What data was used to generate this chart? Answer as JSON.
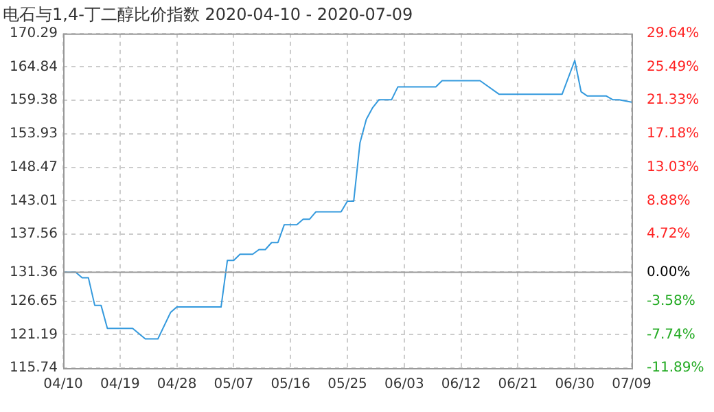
{
  "chart_data": {
    "type": "line",
    "title": "电石与1,4-丁二醇比价指数 2020-04-10 - 2020-07-09",
    "x": [
      "2020-04-10",
      "2020-04-12",
      "2020-04-13",
      "2020-04-14",
      "2020-04-15",
      "2020-04-16",
      "2020-04-17",
      "2020-04-21",
      "2020-04-23",
      "2020-04-25",
      "2020-04-27",
      "2020-04-28",
      "2020-05-05",
      "2020-05-06",
      "2020-05-07",
      "2020-05-08",
      "2020-05-10",
      "2020-05-11",
      "2020-05-12",
      "2020-05-13",
      "2020-05-14",
      "2020-05-15",
      "2020-05-17",
      "2020-05-18",
      "2020-05-19",
      "2020-05-20",
      "2020-05-24",
      "2020-05-25",
      "2020-05-26",
      "2020-05-27",
      "2020-05-28",
      "2020-05-29",
      "2020-05-30",
      "2020-06-01",
      "2020-06-02",
      "2020-06-08",
      "2020-06-09",
      "2020-06-15",
      "2020-06-18",
      "2020-06-28",
      "2020-06-30",
      "2020-07-01",
      "2020-07-02",
      "2020-07-05",
      "2020-07-06",
      "2020-07-07",
      "2020-07-09"
    ],
    "series": [
      {
        "color": "#3399dd",
        "values": [
          131.36,
          131.36,
          130.45,
          130.45,
          125.97,
          125.97,
          122.2,
          122.2,
          120.5,
          120.5,
          124.8,
          125.7,
          125.7,
          133.3,
          133.3,
          134.3,
          134.3,
          135.05,
          135.05,
          136.2,
          136.2,
          139.1,
          139.1,
          140.0,
          140.0,
          141.2,
          141.2,
          142.95,
          142.95,
          152.5,
          156.3,
          158.2,
          159.5,
          159.5,
          161.6,
          161.6,
          162.6,
          162.6,
          160.4,
          160.4,
          165.9,
          160.8,
          160.1,
          160.1,
          159.5,
          159.5,
          159.1
        ]
      }
    ],
    "xlim": [
      "2020-04-10",
      "2020-07-09"
    ],
    "xticks": [
      {
        "value": "2020-04-10",
        "label": "04/10"
      },
      {
        "value": "2020-04-19",
        "label": "04/19"
      },
      {
        "value": "2020-04-28",
        "label": "04/28"
      },
      {
        "value": "2020-05-07",
        "label": "05/07"
      },
      {
        "value": "2020-05-16",
        "label": "05/16"
      },
      {
        "value": "2020-05-25",
        "label": "05/25"
      },
      {
        "value": "2020-06-03",
        "label": "06/03"
      },
      {
        "value": "2020-06-12",
        "label": "06/12"
      },
      {
        "value": "2020-06-21",
        "label": "06/21"
      },
      {
        "value": "2020-06-30",
        "label": "06/30"
      },
      {
        "value": "2020-07-09",
        "label": "07/09"
      }
    ],
    "ylim": [
      115.74,
      170.29
    ],
    "yticks": [
      115.74,
      121.19,
      126.65,
      131.36,
      137.56,
      143.01,
      148.47,
      153.93,
      159.38,
      164.84,
      170.29
    ],
    "y2lim": [
      -11.89,
      29.64
    ],
    "y2ticks": [
      {
        "value": -11.89,
        "label": "-11.89%"
      },
      {
        "value": -7.74,
        "label": "-7.74%"
      },
      {
        "value": -3.58,
        "label": "-3.58%"
      },
      {
        "value": 0,
        "label": "0.00%"
      },
      {
        "value": 4.72,
        "label": "4.72%"
      },
      {
        "value": 8.88,
        "label": "8.88%"
      },
      {
        "value": 13.03,
        "label": "13.03%"
      },
      {
        "value": 17.18,
        "label": "17.18%"
      },
      {
        "value": 21.33,
        "label": "21.33%"
      },
      {
        "value": 25.49,
        "label": "25.49%"
      },
      {
        "value": 29.64,
        "label": "29.64%"
      }
    ],
    "ref_lines": [
      {
        "axis": "y",
        "value": 131.36,
        "color": "#999999"
      }
    ],
    "grid": true,
    "legend": false,
    "marker": "none",
    "line_style": "solid"
  }
}
